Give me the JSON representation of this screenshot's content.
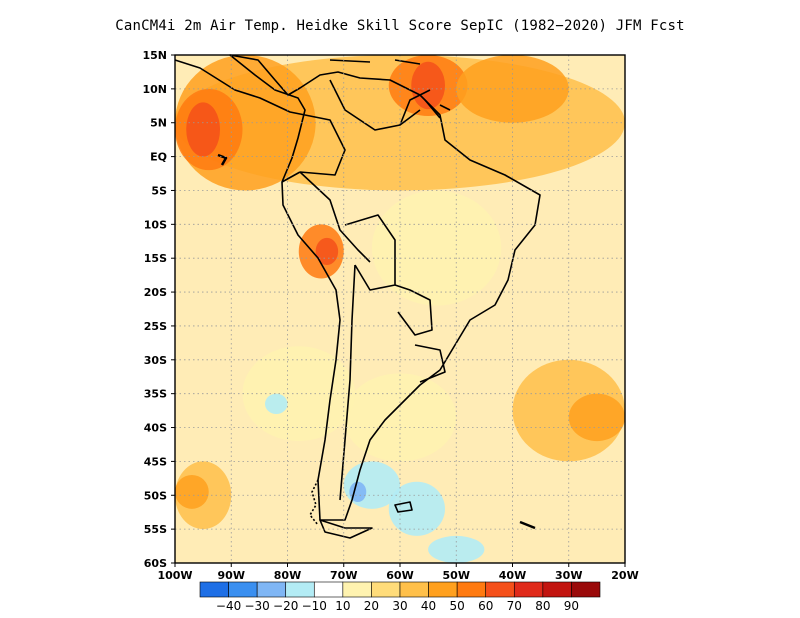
{
  "title": "CanCM4i  2m Air Temp. Heidke Skill Score SepIC (1982−2020) JFM Fcst",
  "map": {
    "lon_range": [
      -100,
      -20
    ],
    "lat_range": [
      -60,
      15
    ],
    "lat_ticks": [
      {
        "value": 15,
        "label": "15N"
      },
      {
        "value": 10,
        "label": "10N"
      },
      {
        "value": 5,
        "label": "5N"
      },
      {
        "value": 0,
        "label": "EQ"
      },
      {
        "value": -5,
        "label": "5S"
      },
      {
        "value": -10,
        "label": "10S"
      },
      {
        "value": -15,
        "label": "15S"
      },
      {
        "value": -20,
        "label": "20S"
      },
      {
        "value": -25,
        "label": "25S"
      },
      {
        "value": -30,
        "label": "30S"
      },
      {
        "value": -35,
        "label": "35S"
      },
      {
        "value": -40,
        "label": "40S"
      },
      {
        "value": -45,
        "label": "45S"
      },
      {
        "value": -50,
        "label": "50S"
      },
      {
        "value": -55,
        "label": "55S"
      },
      {
        "value": -60,
        "label": "60S"
      }
    ],
    "lon_ticks": [
      {
        "value": -100,
        "label": "100W"
      },
      {
        "value": -90,
        "label": "90W"
      },
      {
        "value": -80,
        "label": "80W"
      },
      {
        "value": -70,
        "label": "70W"
      },
      {
        "value": -60,
        "label": "60W"
      },
      {
        "value": -50,
        "label": "50W"
      },
      {
        "value": -40,
        "label": "40W"
      },
      {
        "value": -30,
        "label": "30W"
      },
      {
        "value": -20,
        "label": "20W"
      }
    ],
    "grid": "dotted",
    "background_color": "#ffffff"
  },
  "colorbar": {
    "colors": [
      "#1e6fe6",
      "#3a8ff0",
      "#7fb6f5",
      "#b3ecf5",
      "#ffffff",
      "#fff3b0",
      "#ffdc7a",
      "#ffc04a",
      "#ffa01e",
      "#ff7a10",
      "#f5501a",
      "#e02a1a",
      "#c2140f",
      "#9a0a0a"
    ],
    "labels": [
      "−40",
      "−30",
      "−20",
      "−10",
      "10",
      "20",
      "30",
      "40",
      "50",
      "60",
      "70",
      "80",
      "90"
    ]
  },
  "skill_regions": [
    {
      "level": 20,
      "lon": [
        -100,
        -20
      ],
      "lat": [
        -60,
        15
      ]
    },
    {
      "level": 30,
      "lon": [
        -100,
        -20
      ],
      "lat": [
        -5,
        15
      ]
    },
    {
      "level": 40,
      "lon": [
        -100,
        -75
      ],
      "lat": [
        -5,
        15
      ]
    },
    {
      "level": 50,
      "lon": [
        -100,
        -88
      ],
      "lat": [
        -2,
        10
      ]
    },
    {
      "level": 60,
      "lon": [
        -98,
        -92
      ],
      "lat": [
        0,
        8
      ]
    },
    {
      "level": 50,
      "lon": [
        -62,
        -48
      ],
      "lat": [
        6,
        15
      ]
    },
    {
      "level": 60,
      "lon": [
        -58,
        -52
      ],
      "lat": [
        7,
        14
      ]
    },
    {
      "level": 40,
      "lon": [
        -50,
        -30
      ],
      "lat": [
        5,
        15
      ]
    },
    {
      "level": 50,
      "lon": [
        -78,
        -70
      ],
      "lat": [
        -18,
        -10
      ]
    },
    {
      "level": 60,
      "lon": [
        -75,
        -71
      ],
      "lat": [
        -16,
        -12
      ]
    },
    {
      "level": 30,
      "lon": [
        -40,
        -20
      ],
      "lat": [
        -45,
        -30
      ]
    },
    {
      "level": 40,
      "lon": [
        -30,
        -20
      ],
      "lat": [
        -42,
        -35
      ]
    },
    {
      "level": 30,
      "lon": [
        -100,
        -90
      ],
      "lat": [
        -55,
        -45
      ]
    },
    {
      "level": 40,
      "lon": [
        -100,
        -94
      ],
      "lat": [
        -52,
        -47
      ]
    },
    {
      "level": 10,
      "lon": [
        -65,
        -42
      ],
      "lat": [
        -22,
        -5
      ]
    },
    {
      "level": 10,
      "lon": [
        -70,
        -50
      ],
      "lat": [
        -45,
        -32
      ]
    },
    {
      "level": 10,
      "lon": [
        -88,
        -68
      ],
      "lat": [
        -42,
        -28
      ]
    },
    {
      "level": -10,
      "lon": [
        -70,
        -60
      ],
      "lat": [
        -52,
        -45
      ]
    },
    {
      "level": -10,
      "lon": [
        -62,
        -52
      ],
      "lat": [
        -56,
        -48
      ]
    },
    {
      "level": -10,
      "lon": [
        -55,
        -45
      ],
      "lat": [
        -60,
        -56
      ]
    },
    {
      "level": -20,
      "lon": [
        -69,
        -66
      ],
      "lat": [
        -51,
        -48
      ]
    },
    {
      "level": -10,
      "lon": [
        -84,
        -80
      ],
      "lat": [
        -38,
        -35
      ]
    }
  ]
}
